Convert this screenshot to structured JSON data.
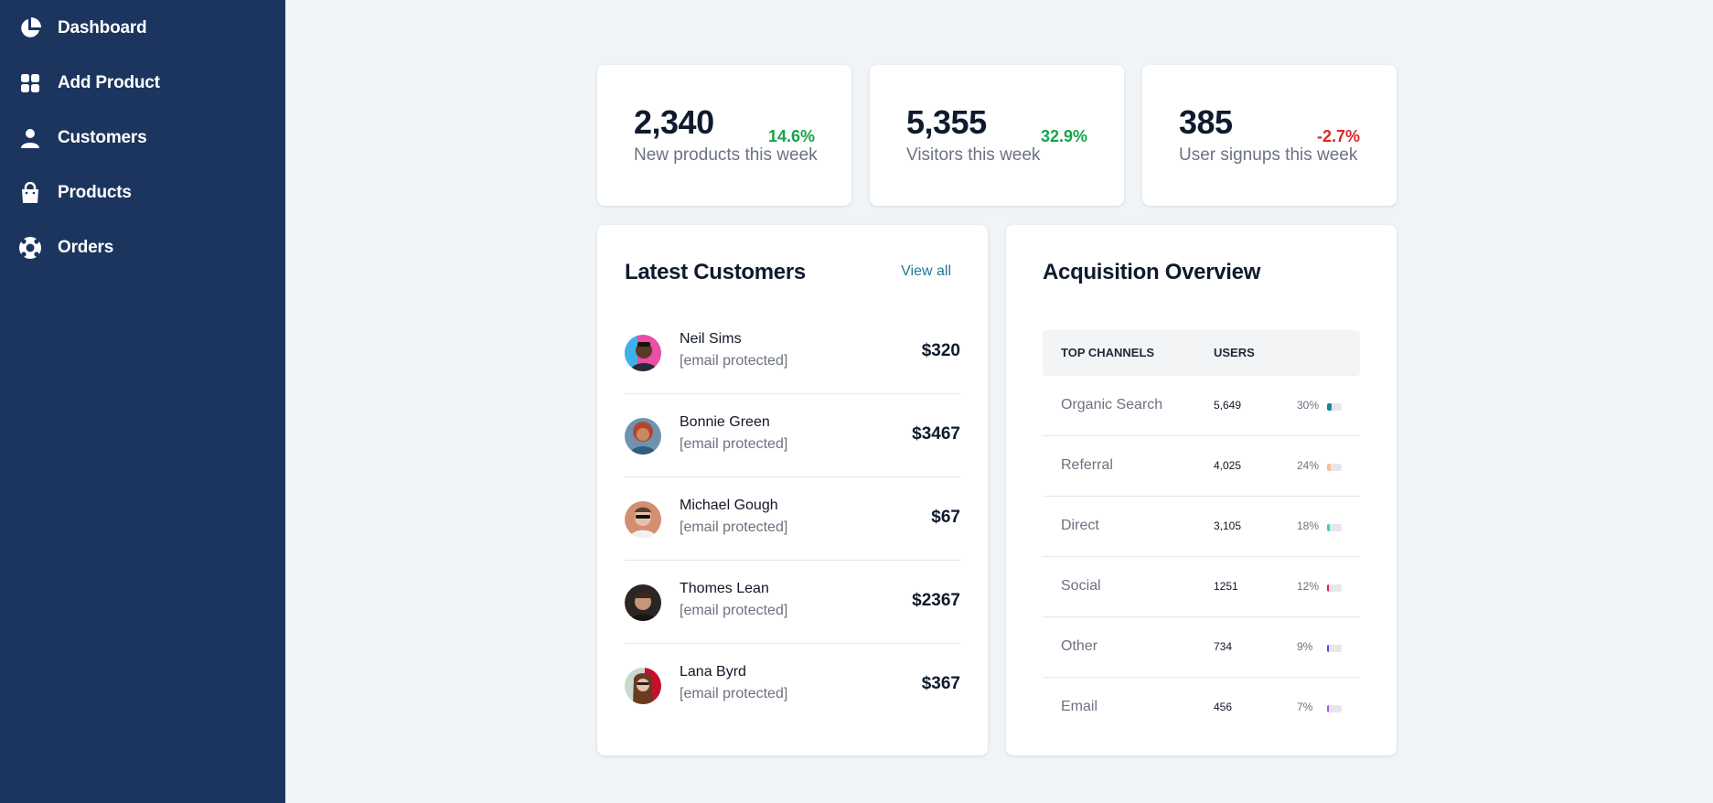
{
  "sidebar": {
    "items": [
      {
        "label": "Dashboard",
        "icon": "pie-chart-icon"
      },
      {
        "label": "Add Product",
        "icon": "grid-icon"
      },
      {
        "label": "Customers",
        "icon": "user-icon"
      },
      {
        "label": "Products",
        "icon": "shopping-bag-icon"
      },
      {
        "label": "Orders",
        "icon": "lifebuoy-icon"
      }
    ]
  },
  "stats": [
    {
      "value": "2,340",
      "label": "New products this week",
      "change": "14.6%",
      "trend": "up"
    },
    {
      "value": "5,355",
      "label": "Visitors this week",
      "change": "32.9%",
      "trend": "up"
    },
    {
      "value": "385",
      "label": "User signups this week",
      "change": "-2.7%",
      "trend": "down"
    }
  ],
  "latest_customers": {
    "title": "Latest Customers",
    "view_all": "View all",
    "rows": [
      {
        "name": "Neil Sims",
        "email": "[email protected]",
        "amount": "$320"
      },
      {
        "name": "Bonnie Green",
        "email": "[email protected]",
        "amount": "$3467"
      },
      {
        "name": "Michael Gough",
        "email": "[email protected]",
        "amount": "$67"
      },
      {
        "name": "Thomes Lean",
        "email": "[email protected]",
        "amount": "$2367"
      },
      {
        "name": "Lana Byrd",
        "email": "[email protected]",
        "amount": "$367"
      }
    ]
  },
  "acquisition": {
    "title": "Acquisition Overview",
    "headers": {
      "channel": "Top Channels",
      "users": "Users"
    },
    "rows": [
      {
        "channel": "Organic Search",
        "users": "5,649",
        "percent": "30%",
        "share": 30,
        "color": "#16859d"
      },
      {
        "channel": "Referral",
        "users": "4,025",
        "percent": "24%",
        "share": 24,
        "color": "#fdba8c"
      },
      {
        "channel": "Direct",
        "users": "3,105",
        "percent": "18%",
        "share": 18,
        "color": "#2dd4bf"
      },
      {
        "channel": "Social",
        "users": "1251",
        "percent": "12%",
        "share": 12,
        "color": "#e11d48"
      },
      {
        "channel": "Other",
        "users": "734",
        "percent": "9%",
        "share": 9,
        "color": "#4f46e5"
      },
      {
        "channel": "Email",
        "users": "456",
        "percent": "7%",
        "share": 7,
        "color": "#a855f7"
      }
    ]
  }
}
